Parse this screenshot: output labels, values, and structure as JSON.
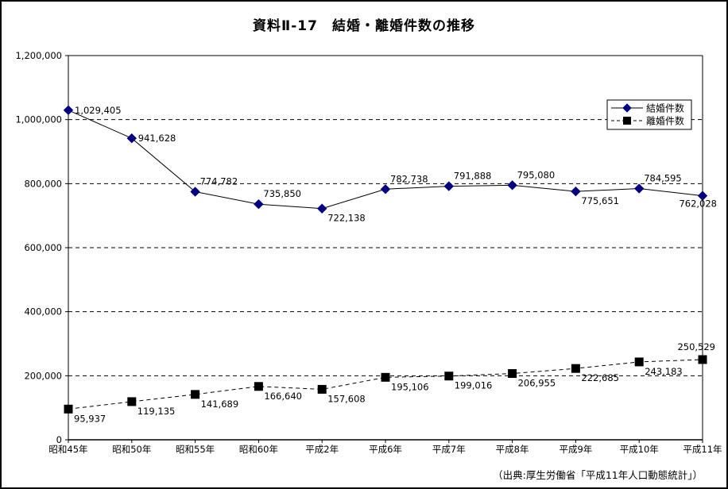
{
  "page": {
    "title": "資料Ⅱ-17　結婚・離婚件数の推移",
    "source": "（出典:厚生労働省「平成11年人口動態統計」）"
  },
  "chart_data": {
    "type": "line",
    "title": "資料Ⅱ-17　結婚・離婚件数の推移",
    "source": "（出典:厚生労働省「平成11年人口動態統計」）",
    "categories": [
      "昭和45年",
      "昭和50年",
      "昭和55年",
      "昭和60年",
      "平成2年",
      "平成6年",
      "平成7年",
      "平成8年",
      "平成9年",
      "平成10年",
      "平成11年"
    ],
    "series": [
      {
        "name": "結婚件数",
        "values": [
          1029405,
          941628,
          774782,
          735850,
          722138,
          782738,
          791888,
          795080,
          775651,
          784595,
          762028
        ],
        "labels": [
          "1,029,405",
          "941,628",
          "774,782",
          "735,850",
          "722,138",
          "782,738",
          "791,888",
          "795,080",
          "775,651",
          "784,595",
          "762,028"
        ],
        "label_pos": [
          "right",
          "right",
          "above",
          "above",
          "below",
          "above",
          "above",
          "above",
          "below",
          "above",
          "below-end"
        ],
        "marker": "diamond",
        "marker_color": "#000080",
        "line_color": "#000000",
        "line_style": "solid"
      },
      {
        "name": "離婚件数",
        "values": [
          95937,
          119135,
          141689,
          166640,
          157608,
          195106,
          199016,
          206955,
          222685,
          243183,
          250529
        ],
        "labels": [
          "95,937",
          "119,135",
          "141,689",
          "166,640",
          "157,608",
          "195,106",
          "199,016",
          "206,955",
          "222,685",
          "243,183",
          "250,529"
        ],
        "label_pos": [
          "below",
          "below",
          "below",
          "below",
          "below",
          "below",
          "below",
          "below",
          "below",
          "below",
          "above-end"
        ],
        "marker": "square",
        "marker_color": "#000000",
        "line_color": "#000000",
        "line_style": "dashed"
      }
    ],
    "ylim": [
      0,
      1200000
    ],
    "ytick_step": 200000,
    "ytick_labels": [
      "0",
      "200,000",
      "400,000",
      "600,000",
      "800,000",
      "1,000,000",
      "1,200,000"
    ],
    "grid": "horizontal-dashed",
    "grid_color": "#000000",
    "legend_position": "top-right",
    "legend_entries": [
      "結婚件数",
      "離婚件数"
    ],
    "background": "#ffffff"
  }
}
